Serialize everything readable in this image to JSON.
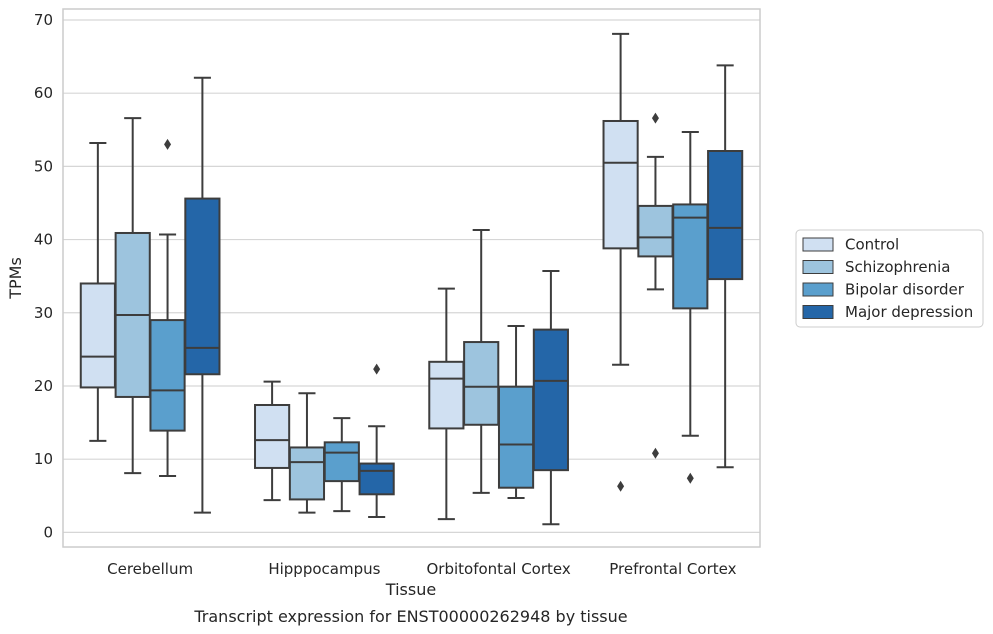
{
  "chart_data": {
    "type": "box",
    "title": "",
    "caption": "Transcript expression for ENST00000262948 by tissue",
    "xlabel": "Tissue",
    "ylabel": "TPMs",
    "ylim": [
      -2,
      71.5
    ],
    "yticks": [
      0,
      10,
      20,
      30,
      40,
      50,
      60,
      70
    ],
    "grid": "horizontal",
    "legend_position": "right",
    "categories": [
      "Cerebellum",
      "Hipppocampus",
      "Orbitofontal Cortex",
      "Prefrontal Cortex"
    ],
    "series": [
      {
        "name": "Control",
        "color": "#d0e0f2",
        "boxes": [
          {
            "whisker_low": 12.5,
            "q1": 19.8,
            "median": 24.0,
            "q3": 34.0,
            "whisker_high": 53.2,
            "outliers": []
          },
          {
            "whisker_low": 4.4,
            "q1": 8.8,
            "median": 12.6,
            "q3": 17.4,
            "whisker_high": 20.6,
            "outliers": []
          },
          {
            "whisker_low": 1.8,
            "q1": 14.2,
            "median": 21.0,
            "q3": 23.3,
            "whisker_high": 33.3,
            "outliers": []
          },
          {
            "whisker_low": 22.9,
            "q1": 38.8,
            "median": 50.5,
            "q3": 56.2,
            "whisker_high": 68.1,
            "outliers": [
              6.3
            ]
          }
        ]
      },
      {
        "name": "Schizophrenia",
        "color": "#9dc4de",
        "boxes": [
          {
            "whisker_low": 8.1,
            "q1": 18.5,
            "median": 29.7,
            "q3": 40.9,
            "whisker_high": 56.6,
            "outliers": []
          },
          {
            "whisker_low": 2.7,
            "q1": 4.5,
            "median": 9.6,
            "q3": 11.6,
            "whisker_high": 19.0,
            "outliers": []
          },
          {
            "whisker_low": 5.4,
            "q1": 14.7,
            "median": 19.9,
            "q3": 26.0,
            "whisker_high": 41.3,
            "outliers": []
          },
          {
            "whisker_low": 33.2,
            "q1": 37.7,
            "median": 40.3,
            "q3": 44.6,
            "whisker_high": 51.3,
            "outliers": [
              56.6,
              10.8
            ]
          }
        ]
      },
      {
        "name": "Bipolar disorder",
        "color": "#5a9fcd",
        "boxes": [
          {
            "whisker_low": 7.7,
            "q1": 13.9,
            "median": 19.4,
            "q3": 29.0,
            "whisker_high": 40.7,
            "outliers": [
              53.0
            ]
          },
          {
            "whisker_low": 2.9,
            "q1": 7.0,
            "median": 10.9,
            "q3": 12.3,
            "whisker_high": 15.6,
            "outliers": []
          },
          {
            "whisker_low": 4.7,
            "q1": 6.1,
            "median": 12.0,
            "q3": 19.9,
            "whisker_high": 28.2,
            "outliers": []
          },
          {
            "whisker_low": 13.2,
            "q1": 30.6,
            "median": 43.0,
            "q3": 44.8,
            "whisker_high": 54.7,
            "outliers": [
              7.4
            ]
          }
        ]
      },
      {
        "name": "Major depression",
        "color": "#2466a8",
        "boxes": [
          {
            "whisker_low": 2.7,
            "q1": 21.6,
            "median": 25.2,
            "q3": 45.6,
            "whisker_high": 62.1,
            "outliers": []
          },
          {
            "whisker_low": 2.1,
            "q1": 5.2,
            "median": 8.4,
            "q3": 9.4,
            "whisker_high": 14.5,
            "outliers": [
              22.3
            ]
          },
          {
            "whisker_low": 1.1,
            "q1": 8.5,
            "median": 20.7,
            "q3": 27.7,
            "whisker_high": 35.7,
            "outliers": []
          },
          {
            "whisker_low": 8.9,
            "q1": 34.6,
            "median": 41.6,
            "q3": 52.1,
            "whisker_high": 63.8,
            "outliers": []
          }
        ]
      }
    ]
  }
}
